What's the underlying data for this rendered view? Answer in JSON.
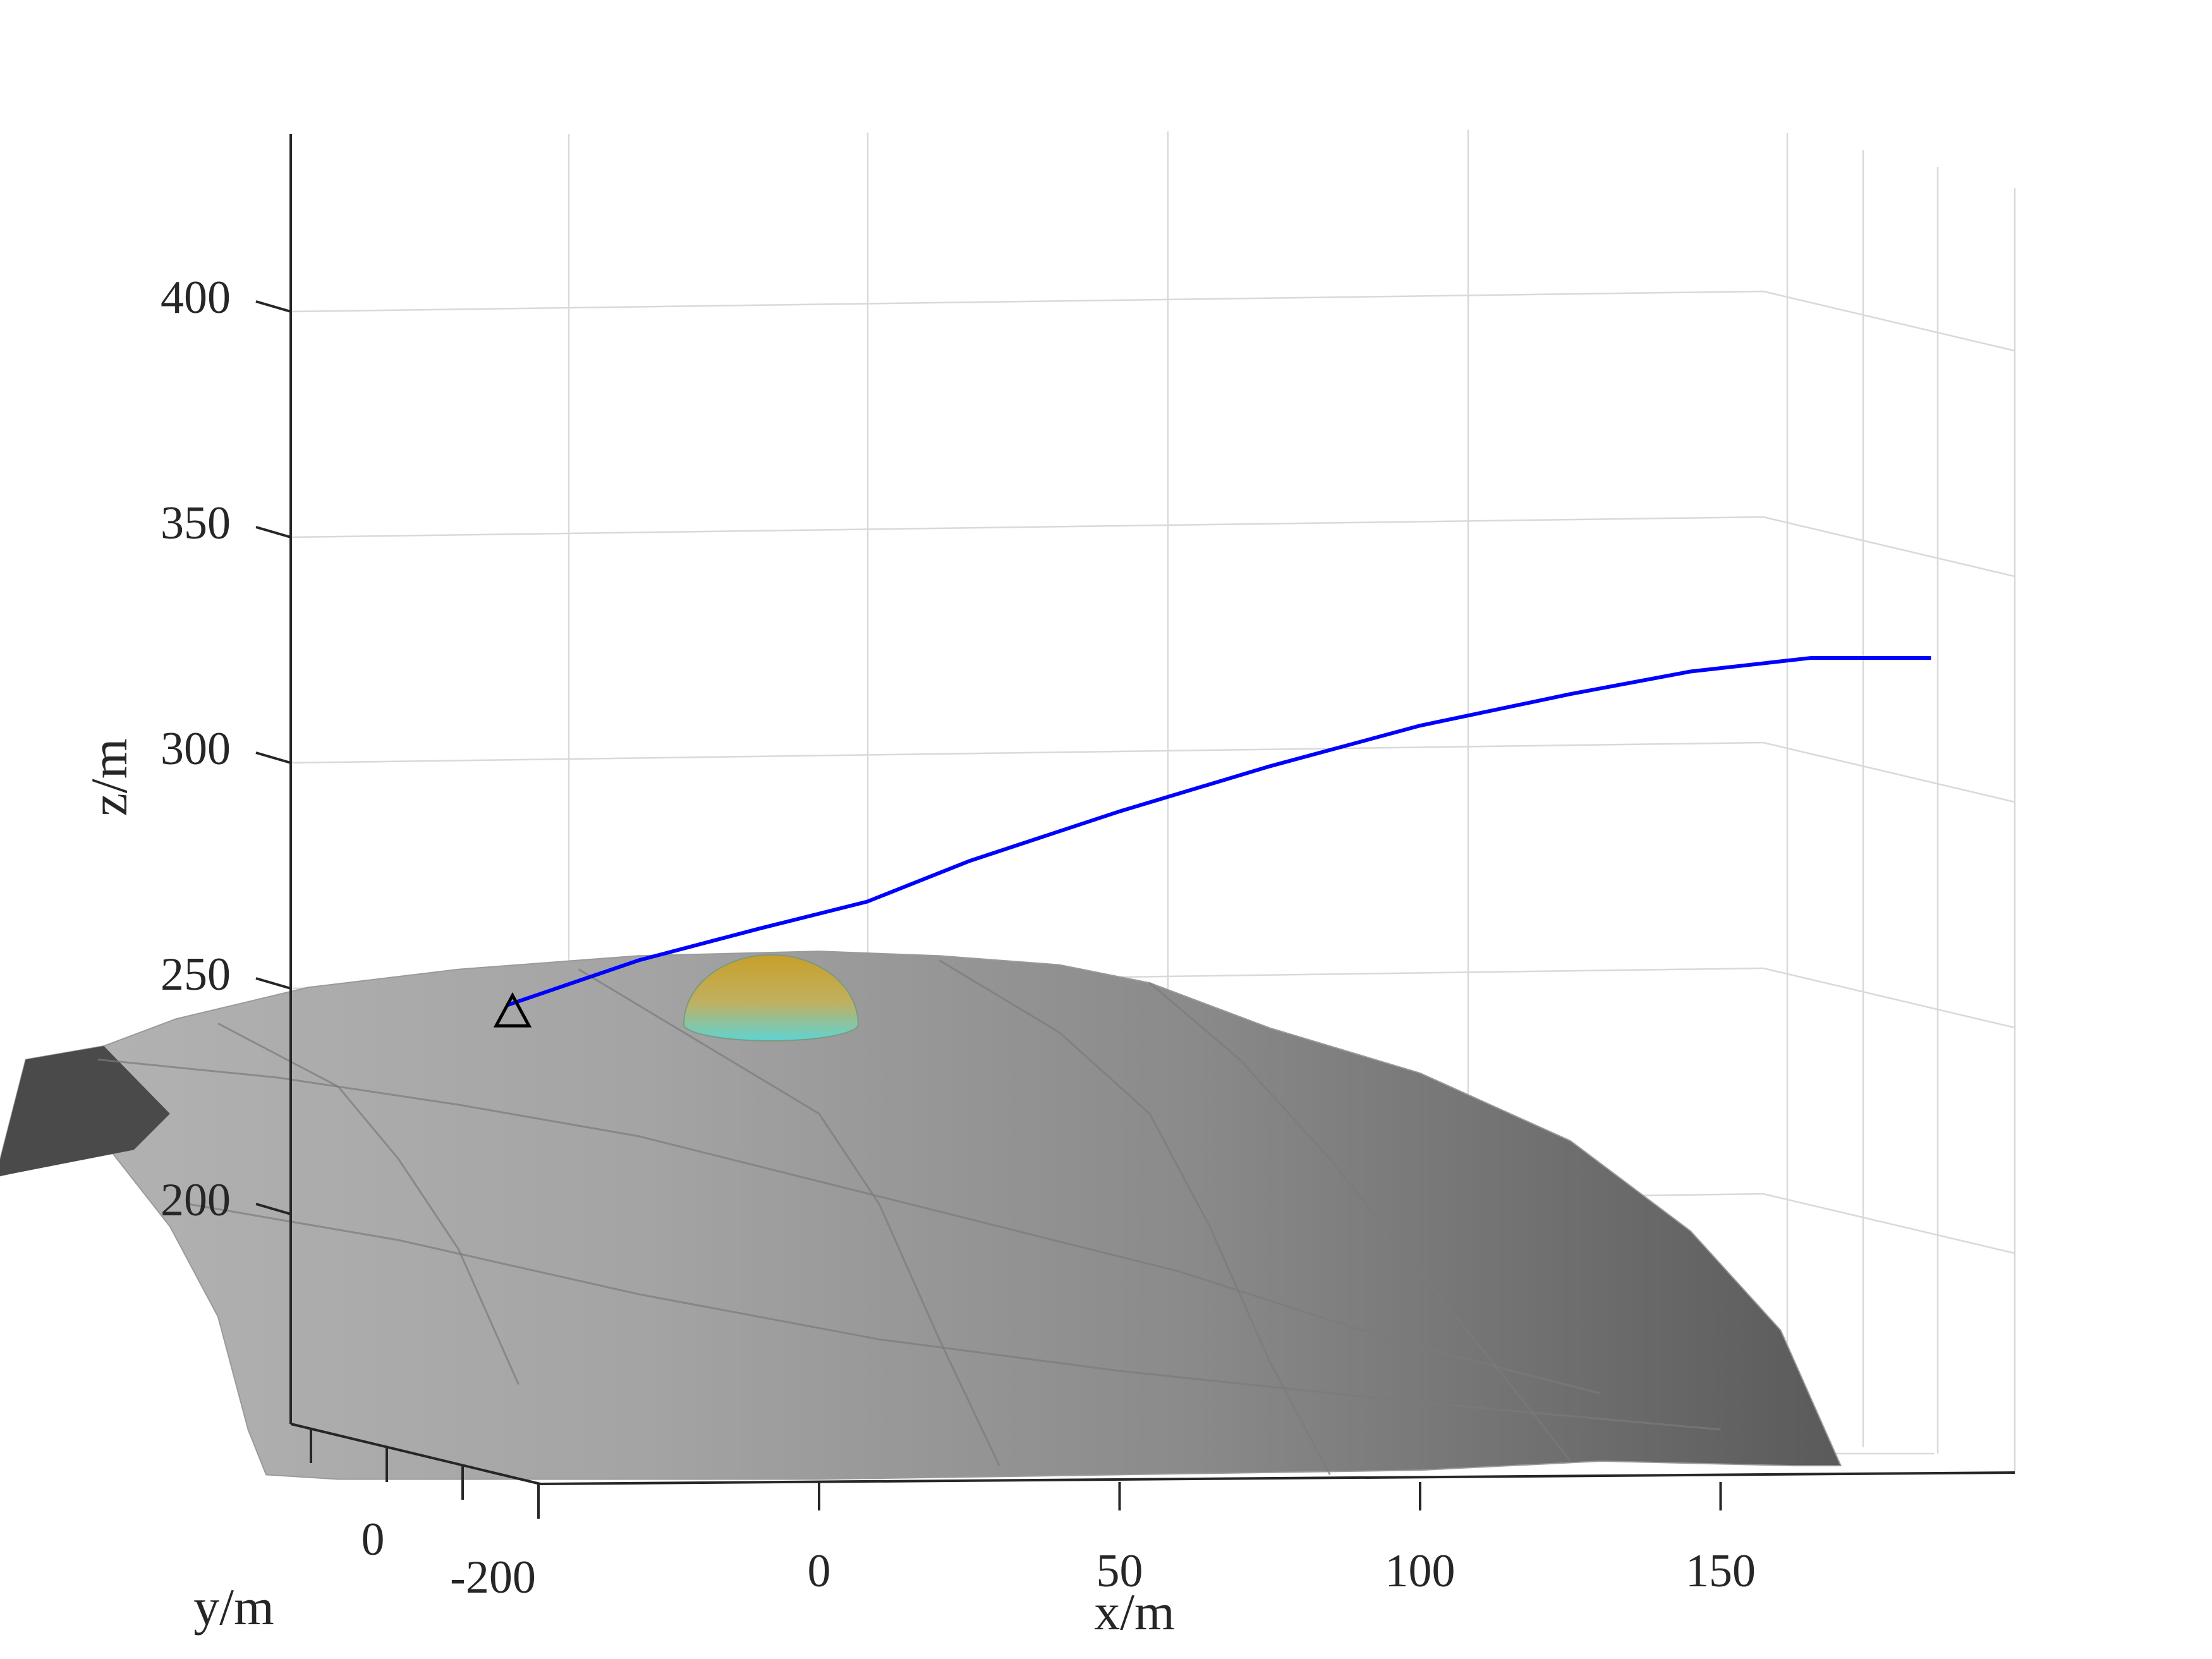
{
  "chart_data": {
    "type": "surface3d",
    "title": "",
    "xlabel": "x/m",
    "ylabel": "y/m",
    "zlabel": "z/m",
    "x_ticks": [
      "0",
      "50",
      "100",
      "150"
    ],
    "y_ticks": [
      "0",
      "-200"
    ],
    "z_ticks": [
      "200",
      "250",
      "300",
      "350",
      "400"
    ],
    "grid": true,
    "colors": {
      "trajectory": "#0000ff",
      "terrain": "#8c8c8c",
      "grid": "#d9d9d9",
      "axis": "#262626",
      "dome_top": "#c8a02a",
      "dome_bottom": "#5fd3d3"
    },
    "series": [
      {
        "name": "",
        "kind": "trajectory",
        "points": [
          {
            "x": -52,
            "z": 244
          },
          {
            "x": -30,
            "z": 254
          },
          {
            "x": -10,
            "z": 261
          },
          {
            "x": 8,
            "z": 267
          },
          {
            "x": 25,
            "z": 276
          },
          {
            "x": 50,
            "z": 287
          },
          {
            "x": 75,
            "z": 297
          },
          {
            "x": 100,
            "z": 306
          },
          {
            "x": 125,
            "z": 313
          },
          {
            "x": 145,
            "z": 318
          },
          {
            "x": 165,
            "z": 321
          },
          {
            "x": 185,
            "z": 321
          }
        ]
      }
    ],
    "markers": [
      {
        "symbol": "triangle",
        "x": -51,
        "z": 242
      }
    ],
    "obstacles": [
      {
        "shape": "hemisphere",
        "x": -8,
        "z": 244
      }
    ]
  }
}
